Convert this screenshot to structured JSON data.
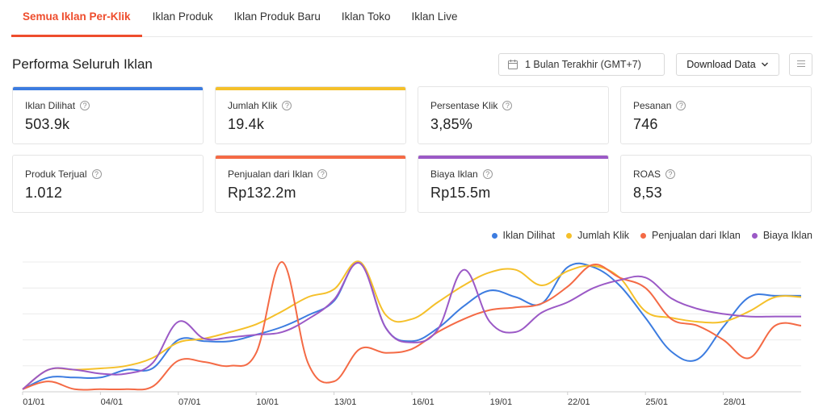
{
  "tabs": [
    {
      "label": "Semua Iklan Per-Klik"
    },
    {
      "label": "Iklan Produk"
    },
    {
      "label": "Iklan Produk Baru"
    },
    {
      "label": "Iklan Toko"
    },
    {
      "label": "Iklan Live"
    }
  ],
  "header": {
    "title": "Performa Seluruh Iklan",
    "date_range": "1 Bulan Terakhir (GMT+7)",
    "download_label": "Download Data"
  },
  "metrics": [
    {
      "label": "Iklan Dilihat",
      "value": "503.9k",
      "color": "#3c7ce0"
    },
    {
      "label": "Jumlah Klik",
      "value": "19.4k",
      "color": "#f5c02a"
    },
    {
      "label": "Persentase Klik",
      "value": "3,85%",
      "color": ""
    },
    {
      "label": "Pesanan",
      "value": "746",
      "color": ""
    },
    {
      "label": "Produk Terjual",
      "value": "1.012",
      "color": ""
    },
    {
      "label": "Penjualan dari Iklan",
      "value": "Rp132.2m",
      "color": "#f46a45"
    },
    {
      "label": "Biaya Iklan",
      "value": "Rp15.5m",
      "color": "#9b59c6"
    },
    {
      "label": "ROAS",
      "value": "8,53",
      "color": ""
    }
  ],
  "chart_data": {
    "type": "line",
    "x": [
      "01/01",
      "02/01",
      "03/01",
      "04/01",
      "05/01",
      "06/01",
      "07/01",
      "08/01",
      "09/01",
      "10/01",
      "11/01",
      "12/01",
      "13/01",
      "14/01",
      "15/01",
      "16/01",
      "17/01",
      "18/01",
      "19/01",
      "20/01",
      "21/01",
      "22/01",
      "23/01",
      "24/01",
      "25/01",
      "26/01",
      "27/01",
      "28/01",
      "29/01",
      "30/01",
      "31/01"
    ],
    "x_tick_labels": [
      "01/01",
      "04/01",
      "07/01",
      "10/01",
      "13/01",
      "16/01",
      "19/01",
      "22/01",
      "25/01",
      "28/01"
    ],
    "ylim": [
      0,
      100
    ],
    "grid": true,
    "legend_position": "top-right",
    "series": [
      {
        "name": "Iklan Dilihat",
        "color": "#3c7ce0",
        "values": [
          2,
          11,
          11,
          11,
          17,
          18,
          40,
          39,
          39,
          44,
          50,
          59,
          70,
          100,
          49,
          39,
          49,
          66,
          78,
          73,
          68,
          96,
          96,
          82,
          57,
          31,
          25,
          50,
          73,
          74,
          74
        ]
      },
      {
        "name": "Jumlah Klik",
        "color": "#f5c02a",
        "values": [
          2,
          17,
          17,
          18,
          20,
          26,
          38,
          41,
          46,
          52,
          62,
          73,
          79,
          100,
          59,
          56,
          69,
          82,
          92,
          94,
          82,
          93,
          97,
          88,
          62,
          57,
          54,
          54,
          62,
          73,
          73
        ]
      },
      {
        "name": "Penjualan dari Iklan",
        "color": "#f46a45",
        "values": [
          2,
          8,
          2,
          2,
          2,
          4,
          24,
          23,
          20,
          30,
          100,
          22,
          8,
          33,
          30,
          33,
          46,
          56,
          63,
          65,
          68,
          81,
          98,
          88,
          80,
          56,
          51,
          40,
          26,
          51,
          51
        ]
      },
      {
        "name": "Biaya Iklan",
        "color": "#9b59c6",
        "values": [
          2,
          17,
          17,
          14,
          14,
          22,
          54,
          41,
          42,
          44,
          46,
          56,
          71,
          99,
          49,
          38,
          48,
          94,
          54,
          46,
          61,
          69,
          80,
          86,
          88,
          72,
          64,
          60,
          58,
          58,
          58
        ]
      }
    ]
  }
}
